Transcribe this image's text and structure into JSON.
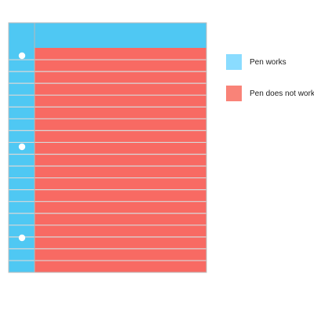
{
  "chart_data": {
    "type": "area",
    "title": "",
    "series": [
      {
        "name": "Pen works",
        "color": "#4fc8f3",
        "description_values": {
          "header_band": true,
          "margin_column": true
        }
      },
      {
        "name": "Pen does not work",
        "color": "#f86a63",
        "description_values": {
          "ruled_area": true
        }
      }
    ],
    "line_count": 19,
    "hole_count": 3,
    "legend_position": "right",
    "grid": false
  },
  "legend": {
    "items": [
      {
        "label": "Pen works",
        "color": "#8adcff"
      },
      {
        "label": "Pen does not work",
        "color": "#f98378"
      }
    ]
  }
}
